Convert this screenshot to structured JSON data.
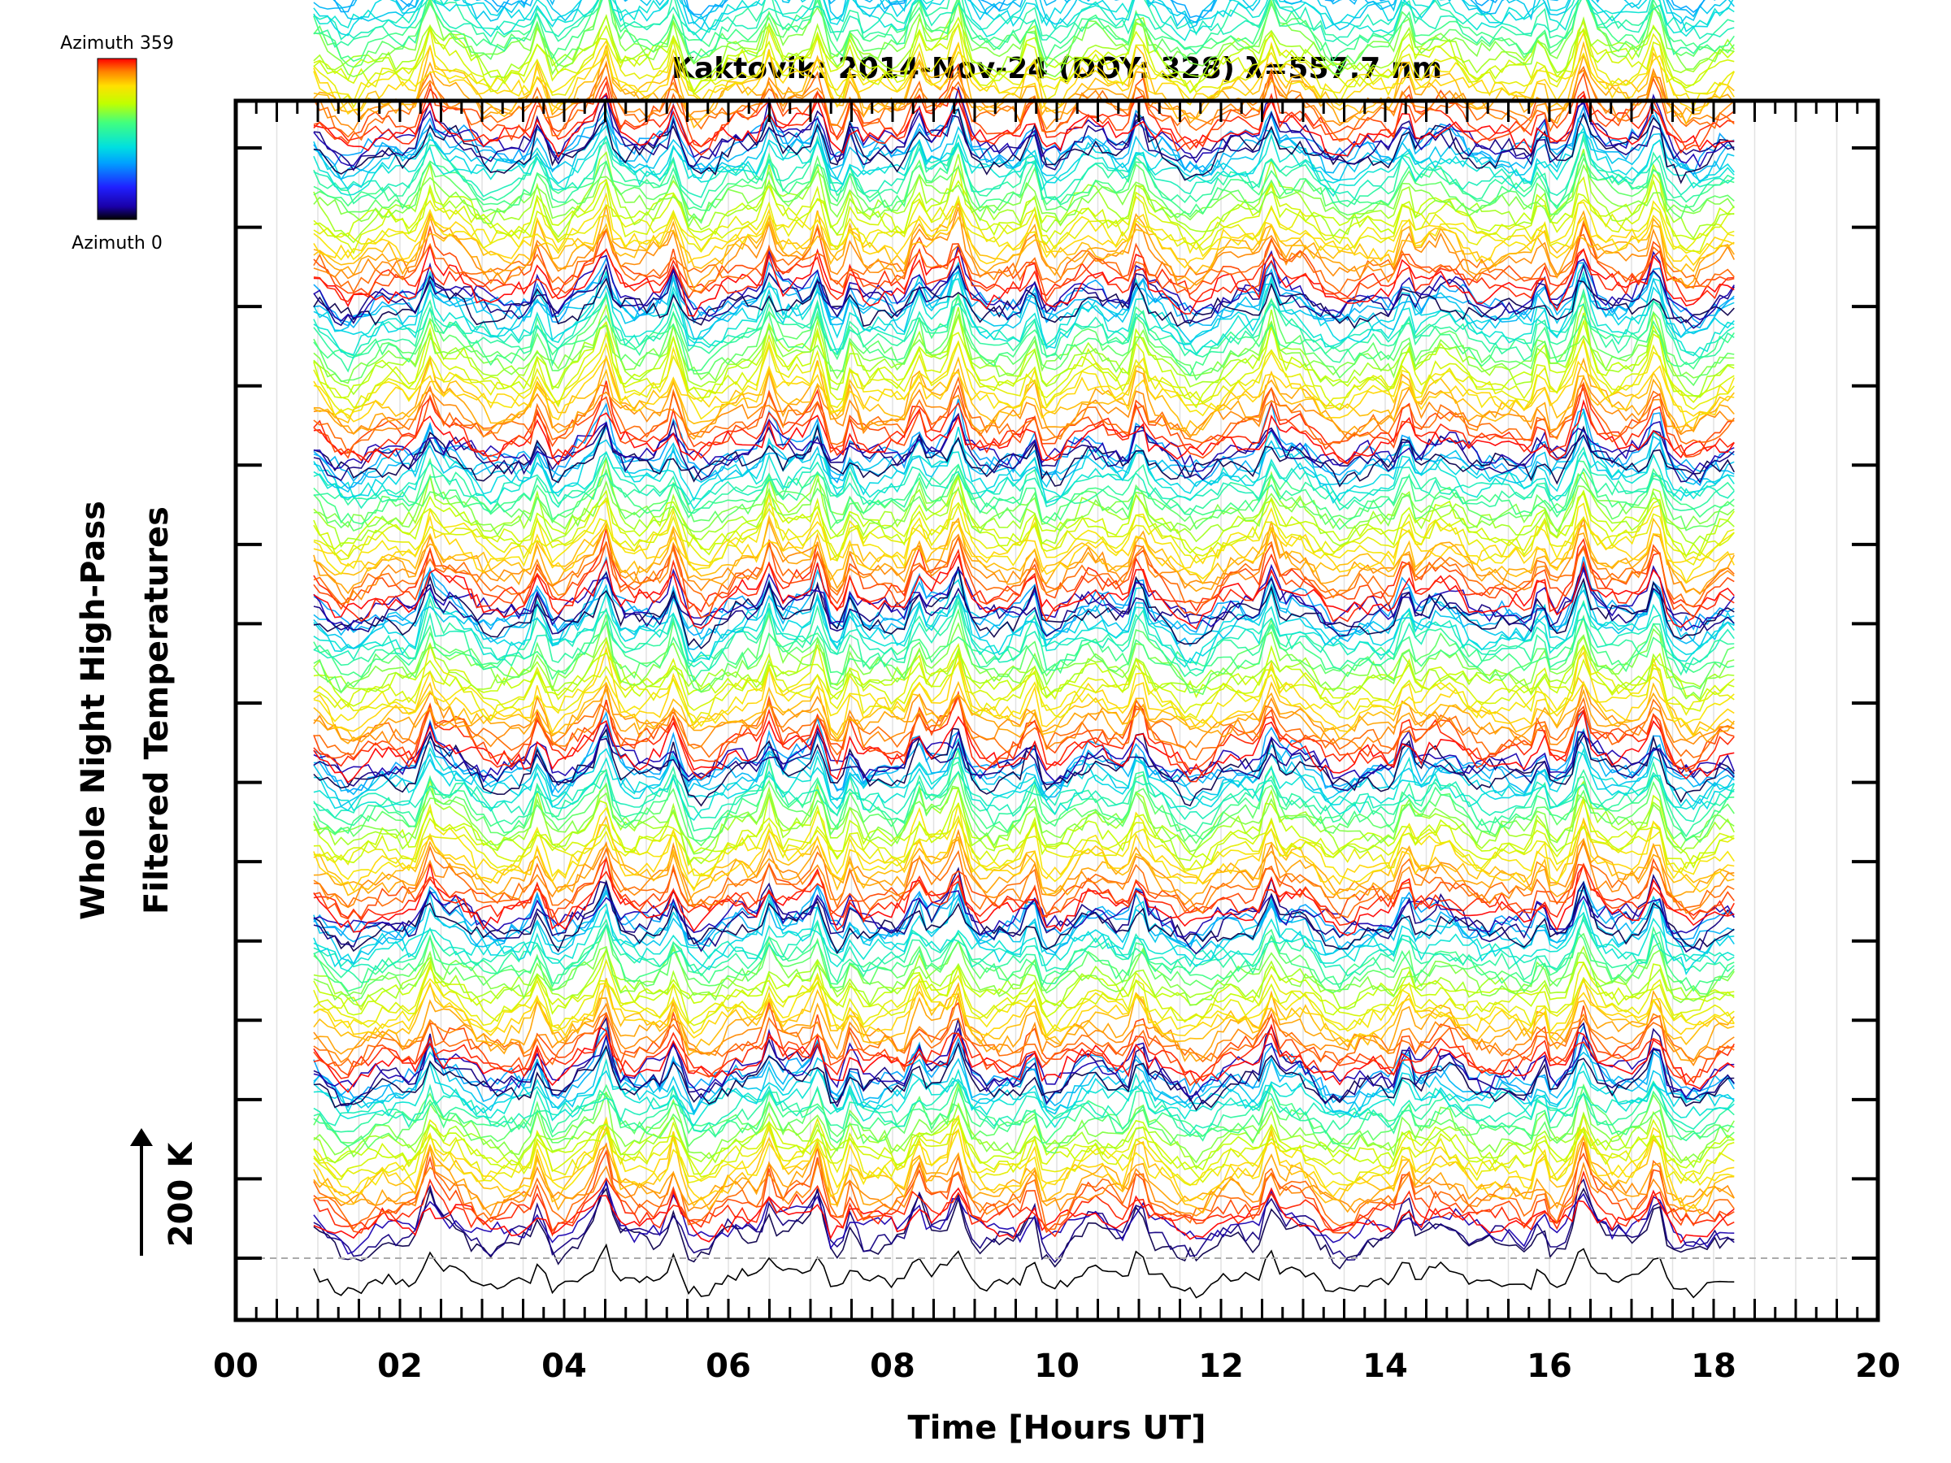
{
  "chart_data": {
    "type": "line",
    "title": "Kaktovik: 2014-Nov-24 (DOY: 328) λ=557.7 nm",
    "xlabel": "Time [Hours UT]",
    "ylabel_lines": [
      "Whole Night High-Pass",
      "Filtered Temperatures"
    ],
    "scale_bar_label": "200 K",
    "x_ticks": [
      "00",
      "02",
      "04",
      "06",
      "08",
      "10",
      "12",
      "14",
      "16",
      "18",
      "20"
    ],
    "xlim": [
      0,
      20
    ],
    "x_range_data": [
      0.95,
      18.25
    ],
    "y_major_tick_count": 15,
    "colorbar": {
      "top_label": "Azimuth 359",
      "bottom_label": "Azimuth 0",
      "range": [
        0,
        359
      ],
      "colors": [
        "#000000",
        "#1a00a8",
        "#2020ff",
        "#00a0ff",
        "#00e0e0",
        "#40ff80",
        "#c0ff00",
        "#ffe000",
        "#ff8000",
        "#ff0000"
      ]
    },
    "grid": true,
    "series_groups": 8,
    "series_per_group": 26,
    "baseline_dashed": true,
    "spike_times_hours": [
      2.35,
      3.7,
      4.5,
      5.35,
      6.5,
      7.1,
      7.5,
      8.3,
      8.8,
      9.7,
      11.0,
      12.6,
      14.25,
      15.9,
      16.4,
      17.3
    ]
  }
}
